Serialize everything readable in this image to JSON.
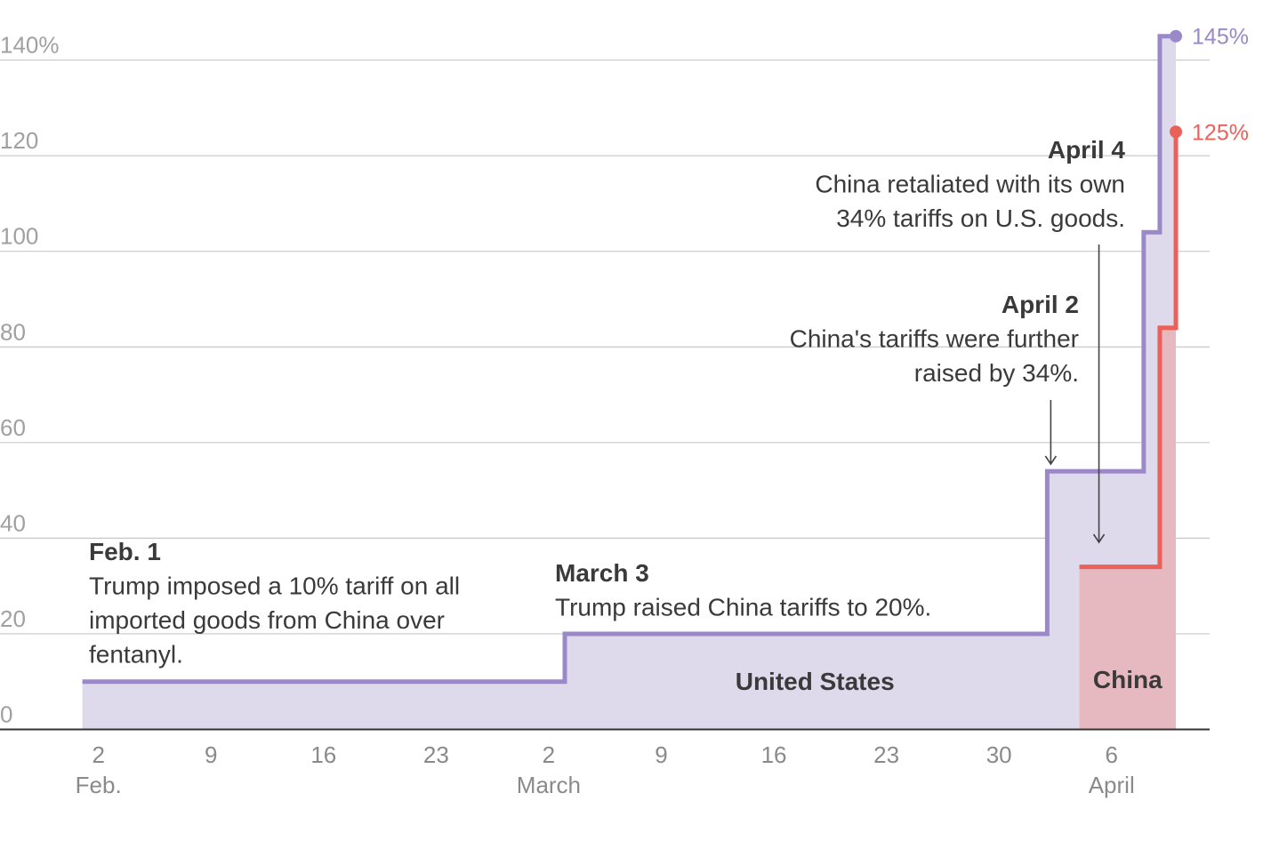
{
  "chart_data": {
    "type": "area",
    "y_ticks": [
      {
        "value": 0,
        "label": "0"
      },
      {
        "value": 20,
        "label": "20"
      },
      {
        "value": 40,
        "label": "40"
      },
      {
        "value": 60,
        "label": "60"
      },
      {
        "value": 80,
        "label": "80"
      },
      {
        "value": 100,
        "label": "100"
      },
      {
        "value": 120,
        "label": "120"
      },
      {
        "value": 140,
        "label": "140%"
      }
    ],
    "ylim": [
      0,
      140
    ],
    "xlim": [
      "2025-02-01",
      "2025-04-10"
    ],
    "x_ticks": [
      {
        "date": "2025-02-02",
        "label": "2",
        "sub": "Feb."
      },
      {
        "date": "2025-02-09",
        "label": "9",
        "sub": ""
      },
      {
        "date": "2025-02-16",
        "label": "16",
        "sub": ""
      },
      {
        "date": "2025-02-23",
        "label": "23",
        "sub": ""
      },
      {
        "date": "2025-03-02",
        "label": "2",
        "sub": "March"
      },
      {
        "date": "2025-03-09",
        "label": "9",
        "sub": ""
      },
      {
        "date": "2025-03-16",
        "label": "16",
        "sub": ""
      },
      {
        "date": "2025-03-23",
        "label": "23",
        "sub": ""
      },
      {
        "date": "2025-03-30",
        "label": "30",
        "sub": ""
      },
      {
        "date": "2025-04-06",
        "label": "6",
        "sub": "April"
      }
    ],
    "grid": true,
    "series": [
      {
        "name": "United States",
        "color": "#9a88c8",
        "fill": "#dedaec",
        "points": [
          {
            "date": "2025-02-01",
            "value": 10
          },
          {
            "date": "2025-03-03",
            "value": 20
          },
          {
            "date": "2025-04-02",
            "value": 54
          },
          {
            "date": "2025-04-08",
            "value": 104
          },
          {
            "date": "2025-04-09",
            "value": 145
          }
        ],
        "end_date": "2025-04-10",
        "end_label": "145%"
      },
      {
        "name": "China",
        "color": "#ea6159",
        "fill": "#e6b9c1",
        "points": [
          {
            "date": "2025-04-04",
            "value": 34
          },
          {
            "date": "2025-04-09",
            "value": 84
          },
          {
            "date": "2025-04-10",
            "value": 125
          }
        ],
        "end_date": "2025-04-10",
        "end_label": "125%"
      }
    ],
    "annotations": [
      {
        "date": "2025-02-01",
        "head": "Feb. 1",
        "lines": [
          "Trump imposed a 10% tariff on all",
          "imported goods from China over",
          "fentanyl."
        ]
      },
      {
        "date": "2025-03-03",
        "head": "March 3",
        "lines": [
          "Trump raised China tariffs to 20%."
        ]
      },
      {
        "date": "2025-04-02",
        "head": "April 2",
        "lines": [
          "China's tariffs were further",
          "raised by 34%."
        ]
      },
      {
        "date": "2025-04-04",
        "head": "April 4",
        "lines": [
          "China retaliated with its own",
          "34% tariffs on U.S. goods."
        ]
      }
    ]
  }
}
